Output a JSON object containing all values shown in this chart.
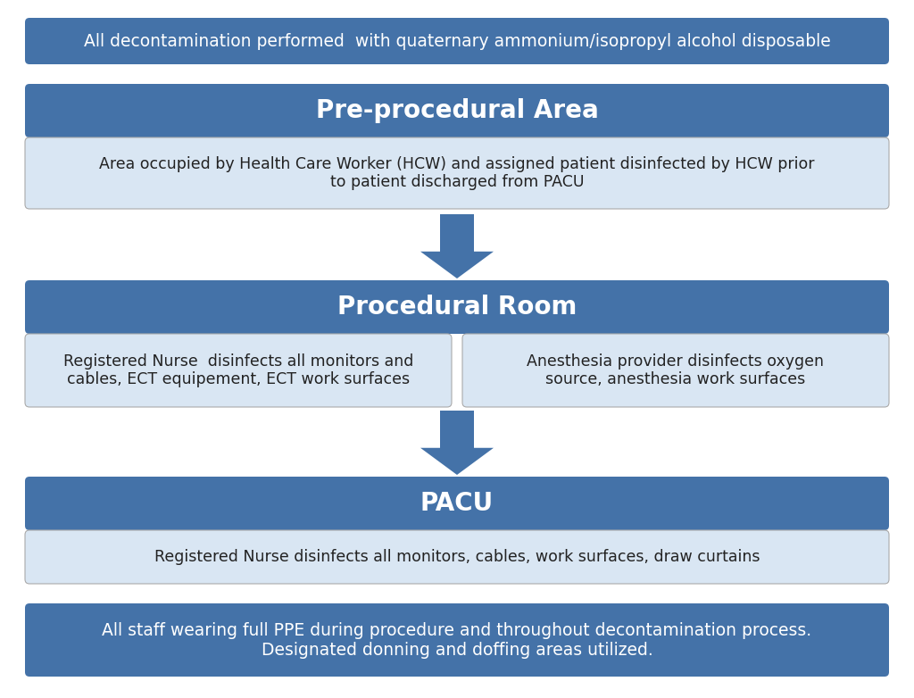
{
  "bg_color": "#ffffff",
  "dark_blue": "#4472A8",
  "light_blue": "#D9E6F3",
  "arrow_color": "#4472A8",
  "top_bar": {
    "text": "All decontamination performed  with quaternary ammonium/isopropyl alcohol disposable",
    "bg": "#4472A8",
    "text_color": "#ffffff",
    "fontsize": 13.5
  },
  "pre_proc": {
    "header": "Pre-procedural Area",
    "header_bg": "#4472A8",
    "header_text_color": "#ffffff",
    "header_fontsize": 20,
    "body": "Area occupied by Health Care Worker (HCW) and assigned patient disinfected by HCW prior\nto patient discharged from PACU",
    "body_bg": "#D9E6F3",
    "body_text_color": "#222222",
    "body_fontsize": 12.5
  },
  "proc_room": {
    "header": "Procedural Room",
    "header_bg": "#4472A8",
    "header_text_color": "#ffffff",
    "header_fontsize": 20,
    "left_body": "Registered Nurse  disinfects all monitors and\ncables, ECT equipement, ECT work surfaces",
    "right_body": "Anesthesia provider disinfects oxygen\nsource, anesthesia work surfaces",
    "body_bg": "#D9E6F3",
    "body_text_color": "#222222",
    "body_fontsize": 12.5
  },
  "pacu": {
    "header": "PACU",
    "header_bg": "#4472A8",
    "header_text_color": "#ffffff",
    "header_fontsize": 20,
    "body": "Registered Nurse disinfects all monitors, cables, work surfaces, draw curtains",
    "body_bg": "#D9E6F3",
    "body_text_color": "#222222",
    "body_fontsize": 12.5
  },
  "bottom_bar": {
    "text": "All staff wearing full PPE during procedure and throughout decontamination process.\nDesignated donning and doffing areas utilized.",
    "bg": "#4472A8",
    "text_color": "#ffffff",
    "fontsize": 13.5
  },
  "figsize": [
    10.24,
    7.82
  ],
  "dpi": 100
}
